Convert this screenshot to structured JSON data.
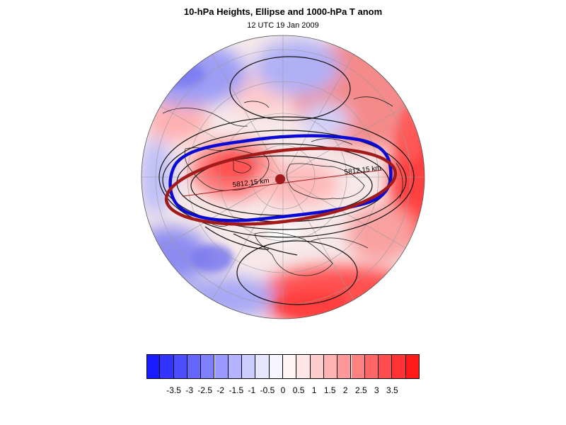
{
  "title": "10-hPa Heights, Ellipse and 1000-hPa T anom",
  "subtitle": "12 UTC 19 Jan 2009",
  "annotations": {
    "length_right": "5812.15 km",
    "length_left": "5812.15 km"
  },
  "colors": {
    "ellipse_blue": "#0a0ad2",
    "ellipse_red": "#a31a1a",
    "center_dot": "#a31a1a",
    "cold": "#0000ff",
    "warm": "#ff0000"
  },
  "colorbar": {
    "colors": [
      "#1a1aff",
      "#3333ff",
      "#4d4dff",
      "#6666ff",
      "#8080ff",
      "#9999ff",
      "#b3b3ff",
      "#ccccff",
      "#e6e6ff",
      "#f5f5ff",
      "#fff5f5",
      "#ffe6e6",
      "#ffcccc",
      "#ffb3b3",
      "#ff9999",
      "#ff8080",
      "#ff6666",
      "#ff4d4d",
      "#ff3333",
      "#ff1a1a"
    ],
    "labels": [
      "-3.5",
      "-3",
      "-2.5",
      "-2",
      "-1.5",
      "-1",
      "-0.5",
      "0",
      "0.5",
      "1",
      "1.5",
      "2",
      "2.5",
      "3",
      "3.5"
    ]
  }
}
